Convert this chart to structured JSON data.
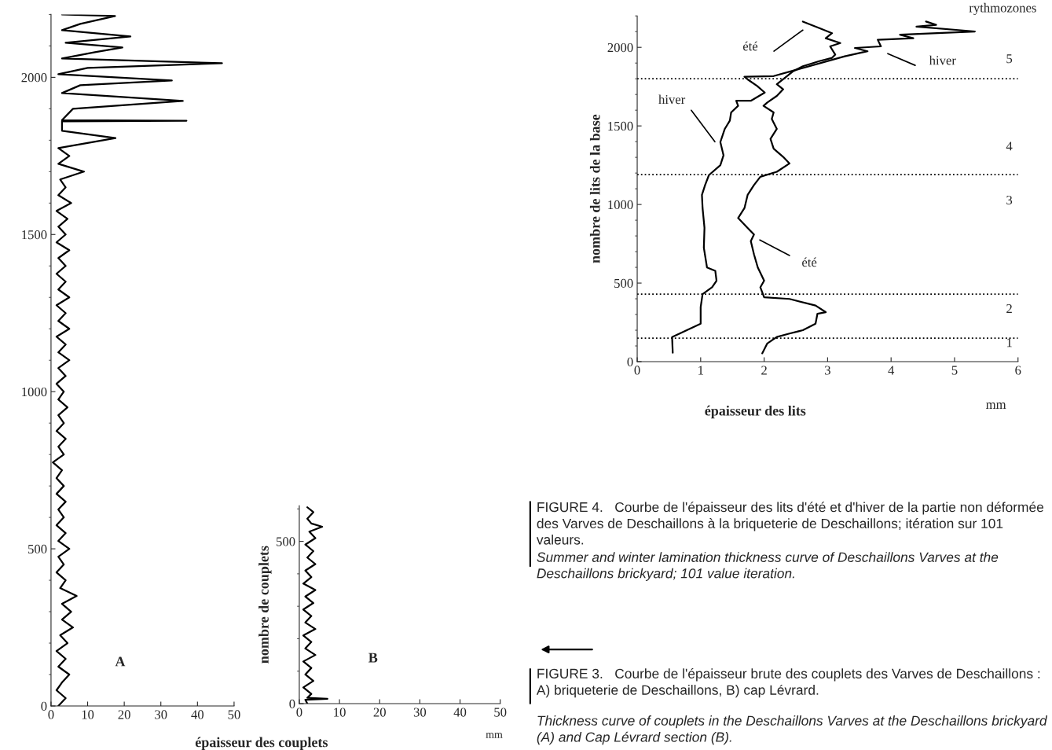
{
  "chart_data": [
    {
      "type": "line",
      "xlabel": "épaisseur des couplets",
      "xlim": [
        0,
        50
      ],
      "xticks": [
        0,
        10,
        20,
        30,
        40,
        50
      ],
      "ylim": [
        0,
        2200
      ],
      "yticks": [
        0,
        500,
        1000,
        1500,
        2000
      ],
      "grid": false,
      "marker": "none",
      "line_style": "solid",
      "annotations": [
        "A"
      ],
      "series": [
        {
          "color": "#000000",
          "x": [
            2,
            4,
            1.5,
            3,
            5,
            2,
            4,
            1.5,
            4.5,
            2.5,
            6,
            3,
            5.5,
            3,
            7,
            2.5,
            4,
            1.5,
            3.5,
            2,
            5,
            2,
            4,
            1.5,
            3.5,
            2,
            4,
            1.5,
            3.5,
            1.5,
            3,
            0.5,
            3.5,
            2,
            4,
            1.5,
            3.5,
            2,
            4.5,
            2,
            3.5,
            1.5,
            4,
            2,
            5,
            2,
            4,
            1.5,
            5,
            2,
            4,
            1.5,
            5,
            2,
            4,
            1.5,
            4,
            2,
            5,
            1.5,
            4,
            2,
            4.5,
            1.5,
            5.5,
            2,
            4,
            2.5,
            9,
            2,
            5,
            2,
            17.6,
            3,
            3,
            37,
            3,
            6,
            36,
            3,
            8,
            33,
            2,
            10,
            46.7,
            3,
            12,
            19.5,
            4,
            21.7,
            3,
            8,
            17.5,
            3
          ],
          "values": [
            0,
            25,
            50,
            75,
            100,
            125,
            150,
            175,
            200,
            225,
            250,
            275,
            300,
            325,
            350,
            375,
            400,
            425,
            450,
            475,
            500,
            525,
            550,
            575,
            600,
            625,
            650,
            675,
            700,
            725,
            750,
            775,
            800,
            825,
            850,
            875,
            900,
            925,
            950,
            975,
            1000,
            1025,
            1050,
            1075,
            1100,
            1125,
            1150,
            1175,
            1200,
            1225,
            1250,
            1275,
            1300,
            1325,
            1350,
            1375,
            1400,
            1425,
            1450,
            1475,
            1500,
            1525,
            1550,
            1575,
            1600,
            1625,
            1650,
            1675,
            1700,
            1725,
            1750,
            1775,
            1807,
            1830,
            1860,
            1862,
            1864,
            1900,
            1925,
            1950,
            1975,
            1990,
            2010,
            2030,
            2045,
            2060,
            2080,
            2095,
            2110,
            2130,
            2150,
            2170,
            2195,
            2200
          ]
        }
      ]
    },
    {
      "type": "line",
      "ylabel": "nombre de couplets",
      "xlim": [
        0,
        50
      ],
      "xticks": [
        0,
        10,
        20,
        30,
        40,
        50
      ],
      "ylim": [
        0,
        610
      ],
      "yticks": [
        0,
        500
      ],
      "grid": false,
      "marker": "none",
      "line_style": "solid",
      "annotations": [
        "B",
        "mm",
        "FIGURE 3.   Courbe de l'épaisseur brute des couplets des Varves de Deschaillons : A) briqueterie de Deschaillons, B) cap Lévrard.",
        "Thickness curve of couplets in the Deschaillons Varves at the Deschaillons brickyard (A) and Cap Lévrard section (B)."
      ],
      "series": [
        {
          "color": "#000000",
          "x": [
            2,
            1.5,
            7,
            2,
            3,
            1,
            3.5,
            1.5,
            3,
            1,
            4,
            1.5,
            3,
            1,
            4,
            1.5,
            3,
            1,
            3.5,
            1.5,
            4,
            1,
            3,
            1.5,
            4,
            2,
            3.5,
            1.5,
            4,
            2.5,
            5.7,
            3,
            2,
            3.5,
            2
          ],
          "values": [
            0,
            12,
            15,
            18,
            30,
            50,
            70,
            90,
            110,
            130,
            150,
            170,
            190,
            210,
            230,
            250,
            270,
            290,
            310,
            330,
            350,
            370,
            390,
            410,
            430,
            450,
            470,
            490,
            510,
            530,
            545,
            555,
            570,
            590,
            605
          ]
        }
      ]
    },
    {
      "type": "line",
      "xlabel": "épaisseur des lits",
      "ylabel": "nombre de lits de la base",
      "xlim": [
        0,
        6
      ],
      "xticks": [
        0,
        1,
        2,
        3,
        4,
        5,
        6
      ],
      "ylim": [
        0,
        2200
      ],
      "yticks": [
        0,
        500,
        1000,
        1500,
        2000
      ],
      "grid": false,
      "marker": "none",
      "line_style": "solid",
      "ref_lines": [
        {
          "axis": "y",
          "value": 150,
          "color": "#000000",
          "line_style": "dotted"
        },
        {
          "axis": "y",
          "value": 430,
          "color": "#000000",
          "line_style": "dotted"
        },
        {
          "axis": "y",
          "value": 1190,
          "color": "#000000",
          "line_style": "dotted"
        },
        {
          "axis": "y",
          "value": 1800,
          "color": "#000000",
          "line_style": "dotted"
        }
      ],
      "annotations": [
        "rythmozones",
        "mm",
        "été",
        "hiver",
        "hiver",
        "été",
        "1",
        "2",
        "3",
        "4",
        "5",
        "FIGURE 4.   Courbe de l'épaisseur des lits d'été et d'hiver de la partie non déformée des Varves de Deschaillons à la briqueterie de Deschaillons; itération sur 101 valeurs.",
        "Summer and winter lamination thickness curve of Deschaillons Varves at the Deschaillons brickyard; 101 value iteration."
      ],
      "series": [
        {
          "color": "#000000",
          "x": [
            1.97,
            2.05,
            2.2,
            2.4,
            2.61,
            2.81,
            2.84,
            2.97,
            2.81,
            2.4,
            2.0,
            1.94,
            2.0,
            1.9,
            1.84,
            1.79,
            1.84,
            1.74,
            1.59,
            1.69,
            1.74,
            1.84,
            1.94,
            2.2,
            2.4,
            2.3,
            2.15,
            2.1,
            2.2,
            2.12,
            2.15,
            1.99,
            2.05,
            2.2,
            2.3,
            2.2,
            2.36,
            2.46,
            2.61,
            2.87,
            3.07,
            3.12,
            3.04,
            3.2,
            2.97,
            3.07,
            2.87,
            2.61
          ],
          "values": [
            53,
            116,
            157,
            179,
            200,
            242,
            305,
            315,
            357,
            399,
            410,
            473,
            515,
            599,
            683,
            767,
            809,
            851,
            914,
            977,
            1061,
            1124,
            1176,
            1208,
            1261,
            1303,
            1355,
            1418,
            1481,
            1544,
            1586,
            1628,
            1649,
            1691,
            1733,
            1765,
            1817,
            1849,
            1880,
            1912,
            1933,
            1954,
            2006,
            2027,
            2058,
            2090,
            2122,
            2164
          ]
        },
        {
          "color": "#000000",
          "x": [
            0.56,
            0.55,
            1.0,
            1.0,
            1.03,
            1.18,
            1.25,
            1.23,
            1.1,
            1.05,
            1.06,
            1.03,
            1.02,
            1.07,
            1.13,
            1.31,
            1.36,
            1.31,
            1.38,
            1.46,
            1.48,
            1.59,
            1.56,
            1.79,
            2.01,
            1.89,
            1.74,
            1.69,
            2.15,
            3.27,
            3.63,
            3.43,
            3.84,
            3.79,
            4.35,
            4.14,
            5.32,
            4.4,
            4.71,
            4.55
          ],
          "values": [
            57,
            157,
            242,
            347,
            430,
            473,
            515,
            578,
            599,
            725,
            851,
            977,
            1061,
            1124,
            1187,
            1250,
            1313,
            1397,
            1481,
            1534,
            1586,
            1628,
            1660,
            1660,
            1712,
            1754,
            1796,
            1813,
            1817,
            1943,
            1975,
            1996,
            2006,
            2048,
            2058,
            2080,
            2101,
            2132,
            2143,
            2164
          ]
        }
      ]
    }
  ]
}
